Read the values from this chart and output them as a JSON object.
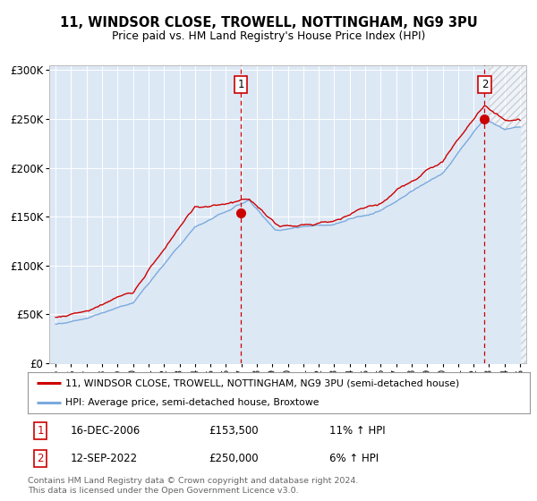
{
  "title": "11, WINDSOR CLOSE, TROWELL, NOTTINGHAM, NG9 3PU",
  "subtitle": "Price paid vs. HM Land Registry's House Price Index (HPI)",
  "bg_color": "#dde8f5",
  "legend_line1": "11, WINDSOR CLOSE, TROWELL, NOTTINGHAM, NG9 3PU (semi-detached house)",
  "legend_line2": "HPI: Average price, semi-detached house, Broxtowe",
  "annotation1_date": "16-DEC-2006",
  "annotation1_price": "£153,500",
  "annotation1_hpi": "11% ↑ HPI",
  "annotation2_date": "12-SEP-2022",
  "annotation2_price": "£250,000",
  "annotation2_hpi": "6% ↑ HPI",
  "footer": "Contains HM Land Registry data © Crown copyright and database right 2024.\nThis data is licensed under the Open Government Licence v3.0.",
  "red_color": "#cc0000",
  "blue_color": "#7aaadd",
  "ann1_x": 2006.96,
  "ann2_x": 2022.71,
  "ann1_y": 153500,
  "ann2_y": 250000,
  "hatch_start": 2023.0,
  "ylim": [
    0,
    305000
  ],
  "yticks": [
    0,
    50000,
    100000,
    150000,
    200000,
    250000,
    300000
  ],
  "xlim_left": 1994.6,
  "xlim_right": 2025.4
}
